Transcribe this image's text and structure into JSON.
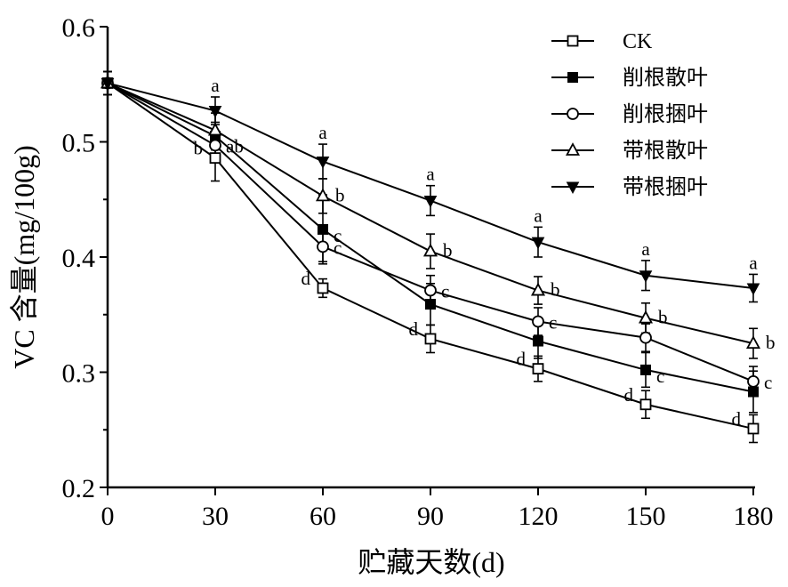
{
  "chart_data": {
    "type": "line",
    "title": "",
    "xlabel": "贮藏天数(d)",
    "ylabel": "VC 含量(mg/100g)",
    "x": [
      0,
      30,
      60,
      90,
      120,
      150,
      180
    ],
    "xlim": [
      0,
      180
    ],
    "ylim": [
      0.2,
      0.6
    ],
    "x_ticks": [
      "0",
      "30",
      "60",
      "90",
      "120",
      "150",
      "180"
    ],
    "y_ticks": [
      "0.2",
      "0.3",
      "0.4",
      "0.5",
      "0.6"
    ],
    "grid": false,
    "legend_position": "top-right",
    "series": [
      {
        "name": "CK",
        "marker": "square-open",
        "values": [
          0.551,
          0.486,
          0.373,
          0.329,
          0.303,
          0.272,
          0.251
        ],
        "errors": [
          0.01,
          0.02,
          0.008,
          0.012,
          0.011,
          0.012,
          0.012
        ],
        "labels": [
          "",
          "b",
          "d",
          "d",
          "d",
          "d",
          "d"
        ]
      },
      {
        "name": "削根散叶",
        "marker": "square-filled",
        "values": [
          0.551,
          0.505,
          0.424,
          0.359,
          0.327,
          0.302,
          0.283
        ],
        "errors": [
          0.01,
          0.012,
          0.03,
          0.018,
          0.015,
          0.015,
          0.018
        ],
        "labels": [
          "",
          "",
          "c",
          "",
          "",
          "c",
          ""
        ]
      },
      {
        "name": "削根捆叶",
        "marker": "circle-open",
        "values": [
          0.551,
          0.497,
          0.409,
          0.371,
          0.344,
          0.33,
          0.292
        ],
        "errors": [
          0.01,
          0.012,
          0.013,
          0.013,
          0.012,
          0.012,
          0.013
        ],
        "labels": [
          "",
          "ab",
          "c",
          "c",
          "c",
          "",
          "c"
        ]
      },
      {
        "name": "带根散叶",
        "marker": "triangle-up-open",
        "values": [
          0.551,
          0.51,
          0.453,
          0.405,
          0.371,
          0.347,
          0.325
        ],
        "errors": [
          0.01,
          0.015,
          0.015,
          0.015,
          0.012,
          0.013,
          0.013
        ],
        "labels": [
          "",
          "",
          "b",
          "b",
          "b",
          "b",
          "b"
        ]
      },
      {
        "name": "带根捆叶",
        "marker": "triangle-down-filled",
        "values": [
          0.551,
          0.527,
          0.483,
          0.449,
          0.413,
          0.384,
          0.373
        ],
        "errors": [
          0.01,
          0.012,
          0.015,
          0.013,
          0.013,
          0.013,
          0.012
        ],
        "labels": [
          "",
          "a",
          "a",
          "a",
          "a",
          "a",
          "a"
        ]
      }
    ]
  }
}
